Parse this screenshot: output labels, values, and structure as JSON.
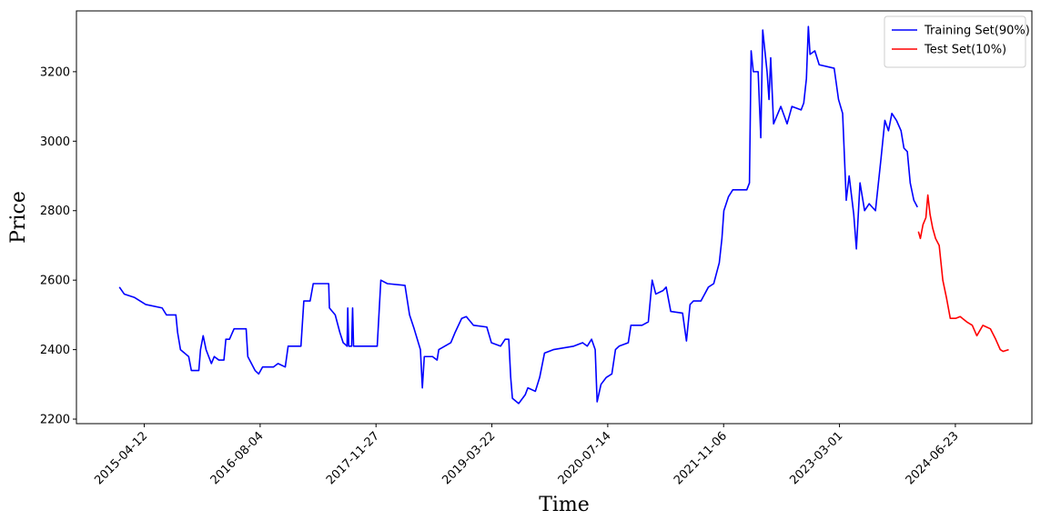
{
  "chart_data": {
    "type": "line",
    "xlabel": "Time",
    "ylabel": "Price",
    "xlim": [
      "2014-07-05",
      "2025-05-06"
    ],
    "xticks": [
      "2015-04-12",
      "2016-08-04",
      "2017-11-27",
      "2019-03-22",
      "2020-07-14",
      "2021-11-06",
      "2023-03-01",
      "2024-06-23"
    ],
    "ylim": [
      2187,
      3375
    ],
    "yticks": [
      2200,
      2400,
      2600,
      2800,
      3000,
      3200
    ],
    "legend": "upper right",
    "series": [
      {
        "name": "Training Set(90%)",
        "color": "#0000ff",
        "x": [
          "2014-12-30",
          "2015-01-19",
          "2015-03-03",
          "2015-04-18",
          "2015-06-25",
          "2015-07-13",
          "2015-08-21",
          "2015-08-28",
          "2015-09-09",
          "2015-10-13",
          "2015-10-24",
          "2015-11-24",
          "2015-12-01",
          "2015-12-12",
          "2015-12-24",
          "2016-01-15",
          "2016-01-27",
          "2016-02-15",
          "2016-03-07",
          "2016-03-15",
          "2016-03-30",
          "2016-04-18",
          "2016-06-07",
          "2016-06-14",
          "2016-07-14",
          "2016-07-29",
          "2016-08-14",
          "2016-09-28",
          "2016-10-17",
          "2016-11-16",
          "2016-11-28",
          "2017-01-20",
          "2017-02-01",
          "2017-02-27",
          "2017-03-12",
          "2017-05-15",
          "2017-05-18",
          "2017-06-11",
          "2017-06-30",
          "2017-07-14",
          "2017-07-30",
          "2017-08-02",
          "2017-08-06",
          "2017-08-18",
          "2017-08-22",
          "2017-08-26",
          "2017-12-02",
          "2017-12-17",
          "2018-01-13",
          "2018-03-27",
          "2018-04-15",
          "2018-05-04",
          "2018-05-30",
          "2018-06-07",
          "2018-06-15",
          "2018-07-19",
          "2018-08-07",
          "2018-08-14",
          "2018-10-03",
          "2018-10-21",
          "2018-11-17",
          "2018-12-06",
          "2019-01-05",
          "2019-03-01",
          "2019-03-20",
          "2019-04-27",
          "2019-05-16",
          "2019-05-31",
          "2019-06-08",
          "2019-06-15",
          "2019-07-11",
          "2019-08-07",
          "2019-08-18",
          "2019-09-18",
          "2019-10-06",
          "2019-10-26",
          "2019-12-02",
          "2020-02-24",
          "2020-04-01",
          "2020-04-20",
          "2020-05-08",
          "2020-05-23",
          "2020-05-31",
          "2020-06-16",
          "2020-07-08",
          "2020-07-31",
          "2020-08-15",
          "2020-08-30",
          "2020-10-07",
          "2020-10-18",
          "2020-12-03",
          "2020-12-29",
          "2021-01-14",
          "2021-01-29",
          "2021-02-28",
          "2021-03-13",
          "2021-04-01",
          "2021-05-20",
          "2021-06-05",
          "2021-06-20",
          "2021-07-04",
          "2021-08-04",
          "2021-09-04",
          "2021-09-26",
          "2021-10-19",
          "2021-10-30",
          "2021-11-07",
          "2021-11-26",
          "2021-12-14",
          "2022-01-21",
          "2022-02-10",
          "2022-02-21",
          "2022-02-28",
          "2022-03-09",
          "2022-03-29",
          "2022-04-09",
          "2022-04-17",
          "2022-05-05",
          "2022-05-13",
          "2022-05-20",
          "2022-06-01",
          "2022-07-01",
          "2022-07-27",
          "2022-08-16",
          "2022-09-23",
          "2022-10-04",
          "2022-10-15",
          "2022-10-23",
          "2022-10-30",
          "2022-11-19",
          "2022-12-07",
          "2023-02-07",
          "2023-02-25",
          "2023-03-14",
          "2023-03-29",
          "2023-04-10",
          "2023-04-29",
          "2023-05-10",
          "2023-05-25",
          "2023-06-13",
          "2023-07-02",
          "2023-07-28",
          "2023-08-20",
          "2023-09-05",
          "2023-09-20",
          "2023-10-04",
          "2023-10-23",
          "2023-11-11",
          "2023-11-23",
          "2023-12-07",
          "2023-12-19",
          "2024-01-03",
          "2024-01-18"
        ],
        "values": [
          2580,
          2560,
          2550,
          2530,
          2520,
          2500,
          2500,
          2450,
          2400,
          2380,
          2340,
          2340,
          2400,
          2440,
          2400,
          2360,
          2380,
          2370,
          2370,
          2430,
          2430,
          2460,
          2460,
          2380,
          2340,
          2330,
          2350,
          2350,
          2360,
          2350,
          2410,
          2410,
          2540,
          2540,
          2590,
          2590,
          2520,
          2500,
          2450,
          2420,
          2410,
          2520,
          2410,
          2410,
          2520,
          2410,
          2410,
          2600,
          2590,
          2585,
          2500,
          2460,
          2400,
          2290,
          2380,
          2380,
          2370,
          2400,
          2420,
          2450,
          2490,
          2495,
          2470,
          2465,
          2420,
          2410,
          2430,
          2430,
          2320,
          2260,
          2245,
          2270,
          2290,
          2280,
          2320,
          2390,
          2400,
          2410,
          2420,
          2410,
          2430,
          2400,
          2250,
          2300,
          2320,
          2330,
          2400,
          2410,
          2420,
          2470,
          2470,
          2480,
          2600,
          2560,
          2570,
          2580,
          2510,
          2505,
          2425,
          2530,
          2540,
          2540,
          2580,
          2590,
          2650,
          2720,
          2800,
          2840,
          2860,
          2860,
          2860,
          2880,
          3260,
          3200,
          3200,
          3010,
          3320,
          3200,
          3120,
          3240,
          3050,
          3100,
          3050,
          3100,
          3090,
          3110,
          3180,
          3330,
          3250,
          3260,
          3220,
          3210,
          3120,
          3080,
          2830,
          2900,
          2790,
          2690,
          2880,
          2800,
          2820,
          2800,
          2950,
          3060,
          3030,
          3080,
          3060,
          3030,
          2980,
          2970,
          2880,
          2830,
          2810
        ]
      },
      {
        "name": "Test Set(10%)",
        "color": "#ff0000",
        "x": [
          "2024-01-22",
          "2024-01-30",
          "2024-02-10",
          "2024-02-22",
          "2024-03-01",
          "2024-03-10",
          "2024-03-21",
          "2024-04-02",
          "2024-04-17",
          "2024-05-02",
          "2024-05-17",
          "2024-06-02",
          "2024-06-24",
          "2024-07-13",
          "2024-08-09",
          "2024-09-01",
          "2024-09-20",
          "2024-10-15",
          "2024-11-15",
          "2024-12-07",
          "2024-12-26",
          "2025-01-07",
          "2025-01-30"
        ],
        "values": [
          2740,
          2720,
          2760,
          2780,
          2845,
          2790,
          2750,
          2720,
          2700,
          2600,
          2550,
          2490,
          2490,
          2495,
          2480,
          2470,
          2440,
          2470,
          2460,
          2430,
          2400,
          2395,
          2400
        ]
      }
    ]
  }
}
